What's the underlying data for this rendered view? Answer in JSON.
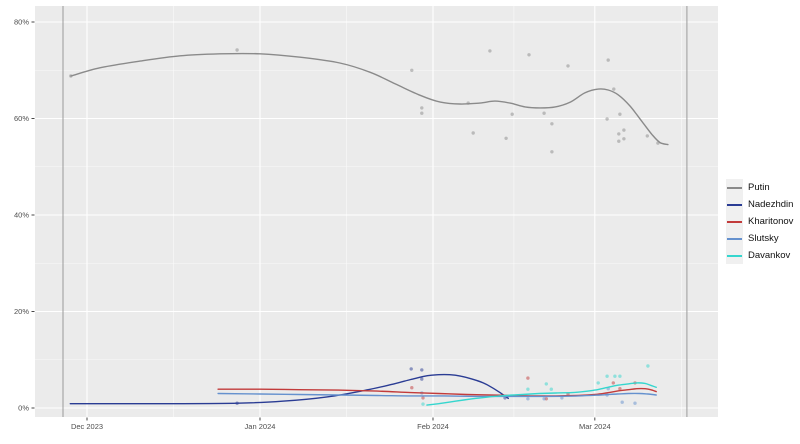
{
  "figure": {
    "background": "#ffffff",
    "panel_background": "#ebebeb",
    "grid_major_color": "#ffffff",
    "grid_minor_color": "#ffffff",
    "reference_line_color": "#9a9a9a",
    "axis_text_color": "#4d4d4d",
    "tick_mark_color": "#333333"
  },
  "chart_data": {
    "type": "scatter",
    "description": "Smoothed poll trend lines with scatter points, Dec 2023 - Mar 2024",
    "title": "",
    "xlabel": "",
    "ylabel": "",
    "x_axis": {
      "unit": "days since 2023-12-01",
      "tick_labels": [
        "Dec 2023",
        "Jan 2024",
        "Feb 2024",
        "Mar 2024"
      ],
      "tick_days": [
        0,
        31,
        62,
        91
      ],
      "minor_tick_days": [
        15.5,
        46.5,
        76.5,
        106.5
      ],
      "domain_days": [
        -9.3,
        113.1
      ]
    },
    "y_axis": {
      "unit": "percent",
      "tick_labels": [
        "0%",
        "20%",
        "40%",
        "60%",
        "80%"
      ],
      "tick_values": [
        0,
        20,
        40,
        60,
        80
      ],
      "minor_tick_values": [
        10,
        30,
        50,
        70
      ],
      "domain": [
        -1.9,
        83.3
      ]
    },
    "reference_lines_days": [
      -4.3,
      107.5
    ],
    "grid": true,
    "legend_position": "right",
    "series": [
      {
        "name": "Putin",
        "color": "#8a8a8a",
        "line": [
          [
            -2.9,
            68.8
          ],
          [
            2.3,
            70.5
          ],
          [
            9.5,
            71.9
          ],
          [
            16.7,
            73.0
          ],
          [
            23.8,
            73.4
          ],
          [
            31,
            73.4
          ],
          [
            38.2,
            72.7
          ],
          [
            45.3,
            71.5
          ],
          [
            50.7,
            69.6
          ],
          [
            55.2,
            67.2
          ],
          [
            59.7,
            64.8
          ],
          [
            63.3,
            63.4
          ],
          [
            66.8,
            63.0
          ],
          [
            70.4,
            63.2
          ],
          [
            73.1,
            63.6
          ],
          [
            75.8,
            63.2
          ],
          [
            78.5,
            62.4
          ],
          [
            81.2,
            62.2
          ],
          [
            83.9,
            62.4
          ],
          [
            86.6,
            63.4
          ],
          [
            89.2,
            65.3
          ],
          [
            91.6,
            66.1
          ],
          [
            93.4,
            65.9
          ],
          [
            95.2,
            64.9
          ],
          [
            97.3,
            62.6
          ],
          [
            99.5,
            59.3
          ],
          [
            101.3,
            56.6
          ],
          [
            102.7,
            55.0
          ],
          [
            104.1,
            54.6
          ]
        ],
        "points": [
          [
            -2.9,
            68.8
          ],
          [
            26.9,
            74.2
          ],
          [
            58.2,
            70.0
          ],
          [
            60.0,
            62.2
          ],
          [
            60.0,
            61.1
          ],
          [
            68.3,
            63.2
          ],
          [
            69.2,
            57.0
          ],
          [
            72.2,
            74.0
          ],
          [
            75.1,
            55.9
          ],
          [
            76.2,
            60.9
          ],
          [
            79.2,
            73.2
          ],
          [
            81.9,
            61.1
          ],
          [
            83.3,
            58.9
          ],
          [
            83.3,
            53.1
          ],
          [
            86.2,
            70.9
          ],
          [
            93.2,
            59.9
          ],
          [
            93.4,
            72.1
          ],
          [
            94.4,
            66.1
          ],
          [
            95.3,
            56.8
          ],
          [
            95.3,
            55.3
          ],
          [
            95.5,
            60.9
          ],
          [
            96.2,
            57.6
          ],
          [
            96.2,
            55.8
          ],
          [
            100.4,
            56.4
          ],
          [
            102.3,
            54.9
          ]
        ]
      },
      {
        "name": "Nadezhdin",
        "color": "#2a3c94",
        "line": [
          [
            -3,
            0.9
          ],
          [
            15,
            0.9
          ],
          [
            27,
            1.0
          ],
          [
            35,
            1.4
          ],
          [
            43,
            2.3
          ],
          [
            50,
            3.7
          ],
          [
            55,
            5.0
          ],
          [
            58,
            5.9
          ],
          [
            61,
            6.7
          ],
          [
            63,
            6.9
          ],
          [
            65,
            6.9
          ],
          [
            67,
            6.6
          ],
          [
            69,
            6.0
          ],
          [
            71,
            5.2
          ],
          [
            72.5,
            4.3
          ],
          [
            74,
            3.2
          ],
          [
            75,
            2.4
          ],
          [
            75.5,
            2.0
          ]
        ],
        "points": [
          [
            26.9,
            1.0
          ],
          [
            58.1,
            8.1
          ],
          [
            60.0,
            7.9
          ],
          [
            60.0,
            6.0
          ],
          [
            74.9,
            2.1
          ]
        ]
      },
      {
        "name": "Kharitonov",
        "color": "#c23b3b",
        "line": [
          [
            23.5,
            3.9
          ],
          [
            31,
            3.9
          ],
          [
            38,
            3.8
          ],
          [
            45,
            3.7
          ],
          [
            52,
            3.5
          ],
          [
            58,
            3.2
          ],
          [
            63,
            3.0
          ],
          [
            68,
            2.8
          ],
          [
            72,
            2.7
          ],
          [
            76,
            2.6
          ],
          [
            80,
            2.5
          ],
          [
            84,
            2.5
          ],
          [
            88,
            2.6
          ],
          [
            91,
            2.8
          ],
          [
            93,
            3.1
          ],
          [
            95,
            3.5
          ],
          [
            97,
            3.8
          ],
          [
            98.5,
            4.0
          ],
          [
            100,
            4.0
          ],
          [
            101,
            3.8
          ],
          [
            102,
            3.4
          ]
        ],
        "points": [
          [
            58.2,
            4.2
          ],
          [
            60.2,
            2.1
          ],
          [
            79.0,
            6.2
          ],
          [
            82.3,
            1.9
          ],
          [
            86.2,
            2.9
          ],
          [
            94.3,
            5.2
          ],
          [
            95.5,
            4.0
          ],
          [
            98.2,
            5.2
          ]
        ]
      },
      {
        "name": "Slutsky",
        "color": "#6591ce",
        "line": [
          [
            23.5,
            3.0
          ],
          [
            31,
            2.9
          ],
          [
            38,
            2.8
          ],
          [
            45,
            2.7
          ],
          [
            52,
            2.6
          ],
          [
            58,
            2.5
          ],
          [
            64,
            2.5
          ],
          [
            70,
            2.4
          ],
          [
            76,
            2.4
          ],
          [
            82,
            2.4
          ],
          [
            88,
            2.5
          ],
          [
            92,
            2.7
          ],
          [
            95,
            2.9
          ],
          [
            97,
            3.0
          ],
          [
            99,
            3.0
          ],
          [
            100.5,
            2.9
          ],
          [
            102,
            2.7
          ]
        ],
        "points": [
          [
            60.0,
            3.1
          ],
          [
            79.0,
            1.9
          ],
          [
            81.9,
            1.9
          ],
          [
            85.1,
            2.1
          ],
          [
            93.2,
            2.7
          ],
          [
            93.4,
            4.0
          ],
          [
            95.9,
            1.2
          ],
          [
            98.2,
            1.0
          ]
        ]
      },
      {
        "name": "Davankov",
        "color": "#35d6ce",
        "line": [
          [
            60.9,
            0.6
          ],
          [
            63,
            0.9
          ],
          [
            66,
            1.4
          ],
          [
            69,
            1.9
          ],
          [
            72,
            2.3
          ],
          [
            75,
            2.6
          ],
          [
            78,
            2.8
          ],
          [
            81,
            3.0
          ],
          [
            84,
            3.1
          ],
          [
            87,
            3.2
          ],
          [
            89,
            3.4
          ],
          [
            91,
            3.7
          ],
          [
            93,
            4.2
          ],
          [
            95,
            4.7
          ],
          [
            97,
            5.0
          ],
          [
            98.5,
            5.2
          ],
          [
            100,
            5.1
          ],
          [
            101,
            4.7
          ],
          [
            102,
            4.3
          ]
        ],
        "points": [
          [
            60.2,
            0.8
          ],
          [
            79.0,
            3.9
          ],
          [
            82.3,
            5.0
          ],
          [
            83.2,
            3.9
          ],
          [
            91.6,
            5.2
          ],
          [
            93.2,
            6.6
          ],
          [
            94.6,
            6.6
          ],
          [
            95.5,
            6.6
          ],
          [
            100.5,
            8.7
          ]
        ]
      }
    ],
    "legend_entries": [
      "Putin",
      "Nadezhdin",
      "Kharitonov",
      "Slutsky",
      "Davankov"
    ]
  }
}
